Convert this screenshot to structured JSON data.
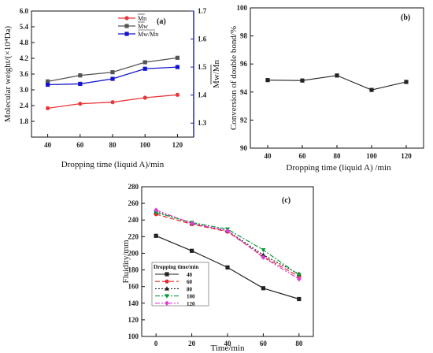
{
  "chart_data": [
    {
      "panel_label": "(a)",
      "type": "line",
      "xlabel": "Dropping time (liquid A)/min",
      "ylabel": "Molecular weight/(×10⁴Da)",
      "y2label": "Mw/Mn",
      "x": [
        40,
        60,
        80,
        100,
        120
      ],
      "xlim": [
        30,
        130
      ],
      "ylim": [
        1.2,
        6.0
      ],
      "y2lim": [
        1.25,
        1.7
      ],
      "yticks": [
        "1.8",
        "2.4",
        "3.0",
        "3.6",
        "4.2",
        "4.8",
        "5.4",
        "6.0"
      ],
      "y2ticks": [
        "1.3",
        "1.4",
        "1.5",
        "1.6",
        "1.7"
      ],
      "series": [
        {
          "name": "Mn",
          "axis": "left",
          "color": "#e8373a",
          "marker": "circle",
          "values": [
            2.3,
            2.47,
            2.53,
            2.7,
            2.81
          ]
        },
        {
          "name": "Mw",
          "axis": "left",
          "color": "#555555",
          "marker": "square",
          "values": [
            3.32,
            3.55,
            3.67,
            4.05,
            4.22
          ]
        },
        {
          "name": "Mw/Mn",
          "axis": "right",
          "color": "#1414cc",
          "marker": "square",
          "values": [
            1.437,
            1.44,
            1.458,
            1.494,
            1.5
          ]
        }
      ],
      "grid": false,
      "legend_position": "top-center"
    },
    {
      "panel_label": "(b)",
      "type": "line",
      "xlabel": "Dropping time (liquid A) /min",
      "ylabel": "Conversion of double bond/%",
      "x": [
        40,
        60,
        80,
        100,
        120
      ],
      "xlim": [
        30,
        130
      ],
      "ylim": [
        90,
        100
      ],
      "yticks": [
        "90",
        "92",
        "94",
        "96",
        "98",
        "100"
      ],
      "series": [
        {
          "color": "#222222",
          "marker": "square",
          "values": [
            94.85,
            94.82,
            95.18,
            94.15,
            94.72
          ]
        }
      ],
      "grid": false
    },
    {
      "panel_label": "(c)",
      "type": "line",
      "xlabel": "Time/min",
      "ylabel": "Fluidity/mm",
      "x": [
        0,
        20,
        40,
        60,
        80
      ],
      "xlim": [
        -8,
        88
      ],
      "ylim": [
        100,
        280
      ],
      "yticks": [
        "100",
        "120",
        "140",
        "160",
        "180",
        "200",
        "220",
        "240",
        "260",
        "280"
      ],
      "legend_title": "Dropping time/min",
      "legend_position": "bottom-left",
      "series": [
        {
          "name": "40",
          "color": "#222222",
          "marker": "square",
          "dash": "",
          "values": [
            221,
            203,
            183,
            158,
            145
          ]
        },
        {
          "name": "60",
          "color": "#e8282a",
          "marker": "circle",
          "dash": "6,3",
          "values": [
            247,
            235,
            226,
            196,
            172
          ]
        },
        {
          "name": "80",
          "color": "#222222",
          "marker": "triangle-up",
          "dash": "2,2",
          "values": [
            250,
            236,
            227,
            198,
            175
          ]
        },
        {
          "name": "100",
          "color": "#0a9a3a",
          "marker": "triangle-down",
          "dash": "6,2,2,2",
          "values": [
            249,
            237,
            229,
            204,
            174
          ]
        },
        {
          "name": "120",
          "color": "#e040d0",
          "marker": "diamond",
          "dash": "6,2,2,2,2,2",
          "values": [
            252,
            236,
            227,
            195,
            169
          ]
        }
      ],
      "grid": false
    }
  ]
}
